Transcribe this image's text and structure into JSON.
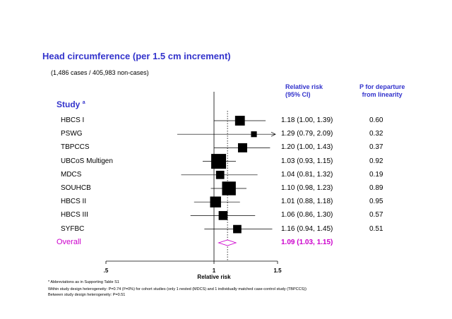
{
  "title": "Head circumference  (per 1.5 cm  increment)",
  "cases": "(1,486 cases / 405,983 non-cases)",
  "col_rr_header": [
    "Relative risk",
    "(95% CI)"
  ],
  "col_p_header": [
    "P for departure",
    "from linearity"
  ],
  "study_header": "Study",
  "study_header_sup": "a",
  "colors": {
    "accent": "#3333cc",
    "overall": "#cc00cc"
  },
  "chart_data": {
    "type": "forest",
    "xlabel": "Relative risk",
    "xscale": "log",
    "xlim": [
      0.5,
      1.5
    ],
    "xticks": [
      {
        "value": 0.5,
        "label": ".5"
      },
      {
        "value": 1.0,
        "label": "1"
      },
      {
        "value": 1.5,
        "label": "1.5"
      }
    ],
    "reference_line": 1.0,
    "overall_line": 1.09,
    "studies": [
      {
        "name": "HBCS I",
        "rr": 1.18,
        "lo": 1.0,
        "hi": 1.39,
        "text": "1.18  (1.00, 1.39)",
        "p": "0.60",
        "weight": 0.55
      },
      {
        "name": "PSWG",
        "rr": 1.29,
        "lo": 0.79,
        "hi": 2.09,
        "text": "1.29  (0.79, 2.09)",
        "p": "0.32",
        "weight": 0.2,
        "arrow_right": true
      },
      {
        "name": "TBPCCS",
        "rr": 1.2,
        "lo": 1.0,
        "hi": 1.43,
        "text": "1.20  (1.00, 1.43)",
        "p": "0.37",
        "weight": 0.5
      },
      {
        "name": "UBCoS Multigen",
        "rr": 1.03,
        "lo": 0.93,
        "hi": 1.15,
        "text": "1.03  (0.93, 1.15)",
        "p": "0.92",
        "weight": 1.0
      },
      {
        "name": "MDCS",
        "rr": 1.04,
        "lo": 0.81,
        "hi": 1.32,
        "text": "1.04  (0.81, 1.32)",
        "p": "0.19",
        "weight": 0.42
      },
      {
        "name": "SOUHCB",
        "rr": 1.1,
        "lo": 0.98,
        "hi": 1.23,
        "text": "1.10  (0.98, 1.23)",
        "p": "0.89",
        "weight": 0.9
      },
      {
        "name": "HBCS II",
        "rr": 1.01,
        "lo": 0.88,
        "hi": 1.18,
        "text": "1.01  (0.88, 1.18)",
        "p": "0.95",
        "weight": 0.65
      },
      {
        "name": "HBCS III",
        "rr": 1.06,
        "lo": 0.86,
        "hi": 1.3,
        "text": "1.06  (0.86, 1.30)",
        "p": "0.57",
        "weight": 0.48
      },
      {
        "name": "SYFBC",
        "rr": 1.16,
        "lo": 0.94,
        "hi": 1.45,
        "text": "1.16  (0.94, 1.45)",
        "p": "0.51",
        "weight": 0.42
      }
    ],
    "overall": {
      "name": "Overall",
      "rr": 1.09,
      "lo": 1.03,
      "hi": 1.15,
      "text": "1.09  (1.03, 1.15)"
    }
  },
  "footnotes": [
    "* Abbreviations as in Supporting Table S1",
    "Within study design heterogeneity: P=0.74 (I²=0%) for cohort studies (only 1 nested  (MDCS) and 1 individually matched case-control study (TBPCCS))",
    "Between study design heterogeneity: P=0.51"
  ]
}
